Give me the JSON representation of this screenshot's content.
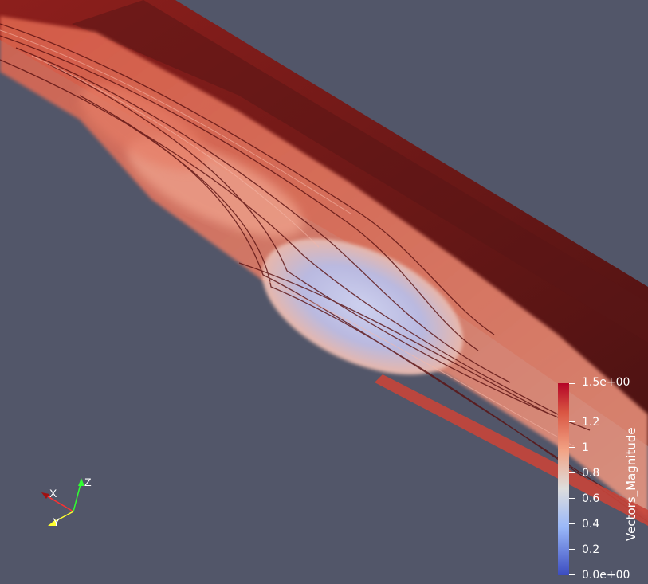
{
  "colorbar": {
    "title": "Vectors_Magnitude",
    "ticks": [
      "1.5e+00",
      "1.2",
      "1",
      "0.8",
      "0.6",
      "0.4",
      "0.2",
      "0.0e+00"
    ],
    "range": [
      0.0,
      1.5
    ],
    "colors": [
      "#3b4cc0",
      "#dddddd",
      "#b40426"
    ]
  },
  "axes": {
    "x_label": "X",
    "y_label": "Y",
    "z_label": "Z",
    "x_color": "#ff3030",
    "y_color": "#ffff30",
    "z_color": "#30ff30"
  },
  "background_color": "#525669"
}
